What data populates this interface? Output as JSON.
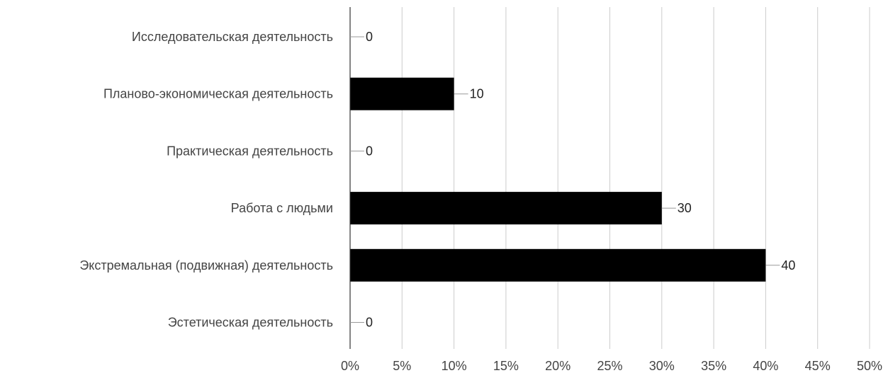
{
  "chart_data": {
    "type": "bar",
    "orientation": "horizontal",
    "categories": [
      "Исследовательская деятельность",
      "Планово-экономическая деятельность",
      "Практическая деятельность",
      "Работа с людьми",
      "Экстремальная (подвижная) деятельность",
      "Эстетическая деятельность"
    ],
    "values": [
      0,
      10,
      0,
      30,
      40,
      0
    ],
    "data_labels": [
      "0",
      "10",
      "0",
      "30",
      "40",
      "0"
    ],
    "x_ticks": [
      "0%",
      "5%",
      "10%",
      "15%",
      "20%",
      "25%",
      "30%",
      "35%",
      "40%",
      "45%",
      "50%"
    ],
    "xlim": [
      0,
      50
    ],
    "title": "",
    "xlabel": "",
    "ylabel": "",
    "grid": "vertical",
    "legend": "none",
    "colors": {
      "bar": "#000000",
      "grid": "#cccccc",
      "axis": "#333333",
      "leader": "#999999"
    }
  }
}
